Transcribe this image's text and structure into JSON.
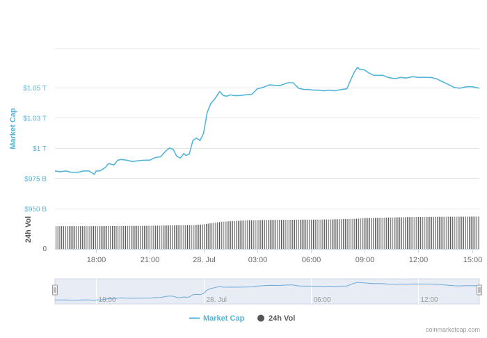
{
  "chart_data": {
    "type": "line",
    "y_axis_title": "Market Cap",
    "y_ticks": [
      "$950 B",
      "$975 B",
      "$1 T",
      "$1.03 T",
      "$1.05 T"
    ],
    "y_tick_values": [
      950,
      975,
      1000,
      1025,
      1050
    ],
    "ylim": [
      950,
      1082
    ],
    "x_ticks": [
      "18:00",
      "21:00",
      "28. Jul",
      "03:00",
      "06:00",
      "09:00",
      "12:00",
      "15:00"
    ],
    "x_tick_hours": [
      18,
      21,
      24,
      27,
      30,
      33,
      36,
      39
    ],
    "xlim": [
      15.7,
      39.4
    ],
    "series": [
      {
        "name": "Market Cap",
        "color": "#54b5d9",
        "x": [
          15.7,
          16.0,
          16.3,
          16.6,
          17.0,
          17.3,
          17.6,
          17.9,
          18.0,
          18.2,
          18.5,
          18.7,
          19.0,
          19.2,
          19.4,
          19.7,
          20.0,
          20.3,
          20.7,
          21.0,
          21.3,
          21.6,
          21.9,
          22.1,
          22.3,
          22.5,
          22.7,
          22.9,
          23.0,
          23.2,
          23.4,
          23.6,
          23.8,
          24.0,
          24.2,
          24.4,
          24.6,
          24.8,
          24.9,
          25.1,
          25.3,
          25.5,
          25.7,
          26.0,
          26.3,
          26.7,
          27.0,
          27.3,
          27.7,
          28.0,
          28.3,
          28.7,
          29.0,
          29.3,
          29.6,
          29.9,
          30.1,
          30.4,
          30.7,
          31.0,
          31.3,
          31.7,
          32.0,
          32.4,
          32.6,
          32.7,
          32.8,
          33.0,
          33.2,
          33.5,
          34.0,
          34.3,
          34.7,
          35.0,
          35.3,
          35.7,
          36.0,
          36.3,
          36.7,
          37.0,
          37.3,
          37.7,
          38.0,
          38.3,
          38.7,
          39.0,
          39.2,
          39.4
        ],
        "values": [
          981.1,
          980.5,
          981.1,
          980.0,
          980.0,
          981.1,
          981.1,
          978.3,
          981.1,
          981.1,
          983.9,
          987.2,
          986.1,
          990.0,
          990.6,
          990.0,
          988.9,
          989.4,
          990.0,
          990.0,
          992.2,
          992.8,
          997.8,
          1000.0,
          998.9,
          993.3,
          991.7,
          995.6,
          993.9,
          995.0,
          1006.1,
          1008.3,
          1006.1,
          1012.2,
          1029.4,
          1036.7,
          1040.0,
          1044.4,
          1046.7,
          1043.3,
          1042.8,
          1043.9,
          1043.3,
          1043.3,
          1043.9,
          1044.4,
          1048.9,
          1050.0,
          1052.2,
          1051.7,
          1051.7,
          1053.9,
          1053.9,
          1049.4,
          1048.3,
          1048.3,
          1047.8,
          1047.8,
          1047.2,
          1047.8,
          1047.2,
          1048.3,
          1048.9,
          1062.2,
          1066.7,
          1065.0,
          1065.0,
          1064.4,
          1062.2,
          1060.0,
          1060.0,
          1058.3,
          1057.2,
          1058.3,
          1057.8,
          1058.9,
          1058.3,
          1058.3,
          1058.3,
          1057.2,
          1055.0,
          1052.2,
          1050.0,
          1049.4,
          1050.6,
          1050.6,
          1050.0,
          1049.4
        ]
      },
      {
        "name": "24h Vol",
        "color": "#555555",
        "x": [
          15.7,
          18.0,
          21.0,
          23.5,
          24.0,
          25.0,
          26.5,
          28.0,
          31.0,
          32.5,
          33.0,
          35.0,
          36.0,
          39.4
        ],
        "values": [
          0.62,
          0.62,
          0.63,
          0.65,
          0.67,
          0.74,
          0.78,
          0.79,
          0.8,
          0.82,
          0.84,
          0.86,
          0.87,
          0.88
        ]
      }
    ],
    "volume_panel": {
      "y_axis_title": "24h Vol",
      "y_ticks": [
        "0"
      ]
    },
    "legend_position": "bottom-center",
    "grid": true
  },
  "navigator": {
    "labels": [
      "18:00",
      "28. Jul",
      "06:00",
      "12:00"
    ],
    "label_hours": [
      18,
      24,
      30,
      36
    ],
    "handle_glyph": "⁞"
  },
  "legend": {
    "items": [
      {
        "label": "Market Cap",
        "marker": "line",
        "color": "#54b5d9"
      },
      {
        "label": "24h Vol",
        "marker": "circle",
        "color": "#555555"
      }
    ]
  },
  "credit": "coinmarketcap.com"
}
